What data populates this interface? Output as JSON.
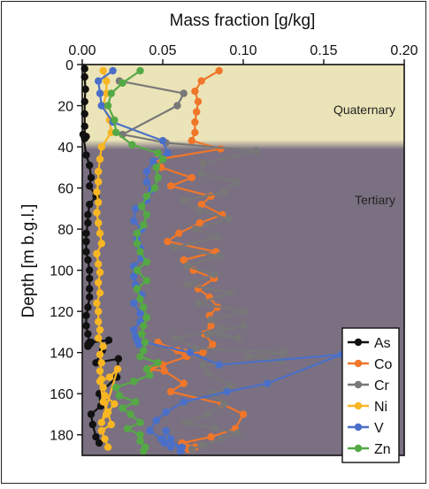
{
  "chart_data": {
    "type": "line",
    "xlabel": "Mass fraction [g/kg]",
    "ylabel": "Depth [m b.g.l.]",
    "xlim": [
      0,
      0.2
    ],
    "ylim": [
      0,
      190
    ],
    "x_ticks": [
      "0.00",
      "0.05",
      "0.10",
      "0.15",
      "0.20"
    ],
    "y_ticks": [
      "0",
      "20",
      "40",
      "60",
      "80",
      "100",
      "120",
      "140",
      "160",
      "180"
    ],
    "x_tick_values": [
      0,
      0.05,
      0.1,
      0.15,
      0.2
    ],
    "y_tick_values": [
      0,
      20,
      40,
      60,
      80,
      100,
      120,
      140,
      160,
      180
    ],
    "legend_position": "bottom-right",
    "zones": [
      {
        "label": "Quaternary",
        "from": 0,
        "to": 39,
        "color": "#ebe4b8"
      },
      {
        "label": "Tertiary",
        "from": 39,
        "to": 190,
        "color": "#7a7081"
      }
    ],
    "series": [
      {
        "name": "As",
        "color": "#111111",
        "x": [
          0.0015,
          0.0015,
          0.002,
          0.0015,
          0.0015,
          0.0015,
          0.0015,
          0.0025,
          0.0005,
          0.0025,
          0.0045,
          0.0055,
          0.0045,
          0.0085,
          0.0045,
          0.0035,
          0.0035,
          0.0025,
          0.0025,
          0.0025,
          0.0035,
          0.0045,
          0.0045,
          0.0045,
          0.0045,
          0.0035,
          0.0025,
          0.0025,
          0.0035,
          0.0045,
          0.0035,
          0.0035,
          0.0045,
          0.0055,
          0.0165,
          0.0125,
          0.0085,
          0.0225,
          0.0215,
          0.0105,
          0.0115,
          0.0055,
          0.0065,
          0.0085,
          0.0105
        ],
        "y": [
          2,
          6,
          12,
          18,
          24,
          30,
          36,
          35,
          34,
          44,
          49,
          55,
          59,
          64,
          68,
          73,
          77,
          82,
          86,
          91,
          95,
          100,
          104,
          109,
          113,
          118,
          122,
          127,
          131,
          135,
          136,
          137,
          136,
          135,
          134,
          139,
          145,
          143,
          152,
          160,
          166,
          170,
          175,
          181,
          184
        ]
      },
      {
        "name": "Co",
        "color": "#f0762a",
        "x": [
          0.085,
          0.074,
          0.07,
          0.072,
          0.071,
          0.07,
          0.07,
          0.068,
          0.086,
          0.048,
          0.049,
          0.068,
          0.055,
          0.08,
          0.074,
          0.087,
          0.073,
          0.06,
          0.053,
          0.083,
          0.063,
          0.069,
          0.082,
          0.072,
          0.079,
          0.084,
          0.079,
          0.08,
          0.076,
          0.081,
          0.075,
          0.064,
          0.064,
          0.059,
          0.047,
          0.065,
          0.05,
          0.042,
          0.051,
          0.063,
          0.055,
          0.087,
          0.1,
          0.095,
          0.08,
          0.062,
          0.07,
          0.066
        ],
        "y": [
          3,
          8,
          13,
          18,
          23,
          28,
          33,
          37,
          41,
          46,
          50,
          55,
          59,
          64,
          68,
          73,
          77,
          82,
          86,
          91,
          95,
          100,
          104,
          109,
          113,
          118,
          122,
          127,
          131,
          136,
          140,
          140,
          141,
          139,
          135,
          142,
          146,
          148,
          149,
          155,
          159,
          165,
          170,
          177,
          181,
          184,
          186,
          187
        ]
      },
      {
        "name": "Cr",
        "color": "#787878",
        "x": [
          0.023,
          0.063,
          0.059,
          0.025,
          0.052,
          0.108,
          0.075,
          0.074,
          0.096,
          0.088,
          0.063,
          0.073,
          0.091,
          0.07,
          0.084,
          0.057,
          0.085,
          0.065,
          0.082,
          0.065,
          0.092,
          0.072,
          0.1,
          0.08,
          0.087,
          0.085,
          0.097,
          0.078,
          0.1,
          0.058,
          0.07,
          0.125,
          0.103,
          0.124,
          0.075,
          0.078,
          0.092,
          0.081,
          0.088,
          0.078,
          0.064,
          0.082,
          0.097,
          0.086,
          0.075,
          0.068
        ],
        "y": [
          8,
          14,
          20,
          34,
          38,
          42,
          48,
          53,
          57,
          62,
          66,
          71,
          75,
          80,
          84,
          89,
          93,
          98,
          102,
          107,
          111,
          116,
          120,
          124,
          128,
          131,
          133,
          131,
          127,
          133,
          138,
          140,
          142,
          144,
          146,
          150,
          156,
          160,
          165,
          170,
          174,
          177,
          179,
          182,
          185,
          187
        ]
      },
      {
        "name": "Ni",
        "color": "#f8b623",
        "x": [
          0.013,
          0.015,
          0.015,
          0.013,
          0.017,
          0.018,
          0.012,
          0.011,
          0.01,
          0.01,
          0.009,
          0.01,
          0.009,
          0.01,
          0.011,
          0.012,
          0.009,
          0.01,
          0.011,
          0.01,
          0.011,
          0.009,
          0.01,
          0.01,
          0.011,
          0.01,
          0.013,
          0.011,
          0.012,
          0.011,
          0.012,
          0.013,
          0.014,
          0.02,
          0.015,
          0.012,
          0.022,
          0.017,
          0.011,
          0.013,
          0.016,
          0.018,
          0.012,
          0.014,
          0.016
        ],
        "y": [
          3,
          8,
          14,
          20,
          27,
          33,
          40,
          46,
          52,
          57,
          62,
          67,
          72,
          77,
          82,
          87,
          92,
          97,
          101,
          106,
          111,
          116,
          120,
          125,
          129,
          133,
          137,
          141,
          145,
          149,
          153,
          157,
          161,
          165,
          170,
          174,
          148,
          152,
          154,
          164,
          169,
          175,
          178,
          182,
          186
        ]
      },
      {
        "name": "V",
        "color": "#4a6fc9",
        "x": [
          0.019,
          0.01,
          0.011,
          0.012,
          0.019,
          0.05,
          0.053,
          0.044,
          0.04,
          0.04,
          0.043,
          0.04,
          0.033,
          0.032,
          0.037,
          0.034,
          0.036,
          0.037,
          0.032,
          0.032,
          0.033,
          0.037,
          0.032,
          0.036,
          0.036,
          0.032,
          0.033,
          0.034,
          0.035,
          0.039,
          0.067,
          0.085,
          0.161,
          0.115,
          0.09,
          0.063,
          0.052,
          0.046,
          0.042,
          0.049,
          0.062,
          0.061,
          0.055,
          0.052,
          0.051,
          0.055
        ],
        "y": [
          3,
          8,
          14,
          20,
          28,
          37,
          43,
          47,
          52,
          57,
          61,
          66,
          70,
          76,
          80,
          85,
          89,
          94,
          98,
          103,
          107,
          112,
          116,
          121,
          125,
          129,
          132,
          134,
          136,
          135,
          140,
          146,
          141,
          155,
          159,
          164,
          169,
          173,
          178,
          182,
          186,
          188,
          182,
          178,
          184,
          186
        ]
      },
      {
        "name": "Zn",
        "color": "#55a945",
        "x": [
          0.036,
          0.025,
          0.018,
          0.016,
          0.02,
          0.021,
          0.031,
          0.047,
          0.05,
          0.046,
          0.047,
          0.045,
          0.04,
          0.037,
          0.04,
          0.038,
          0.034,
          0.034,
          0.036,
          0.04,
          0.034,
          0.04,
          0.034,
          0.036,
          0.038,
          0.04,
          0.038,
          0.037,
          0.039,
          0.038,
          0.036,
          0.047,
          0.04,
          0.042,
          0.032,
          0.021,
          0.023,
          0.033,
          0.025,
          0.03,
          0.036,
          0.028,
          0.036,
          0.036,
          0.039,
          0.038
        ],
        "y": [
          3,
          9,
          14,
          20,
          27,
          33,
          39,
          43,
          46,
          50,
          55,
          60,
          64,
          69,
          73,
          78,
          82,
          87,
          91,
          96,
          100,
          105,
          109,
          114,
          118,
          123,
          127,
          131,
          135,
          139,
          142,
          145,
          148,
          151,
          154,
          157,
          161,
          164,
          167,
          170,
          174,
          177,
          180,
          183,
          186,
          188
        ]
      }
    ],
    "zone_labels": [
      "Quaternary",
      "Tertiary"
    ]
  }
}
